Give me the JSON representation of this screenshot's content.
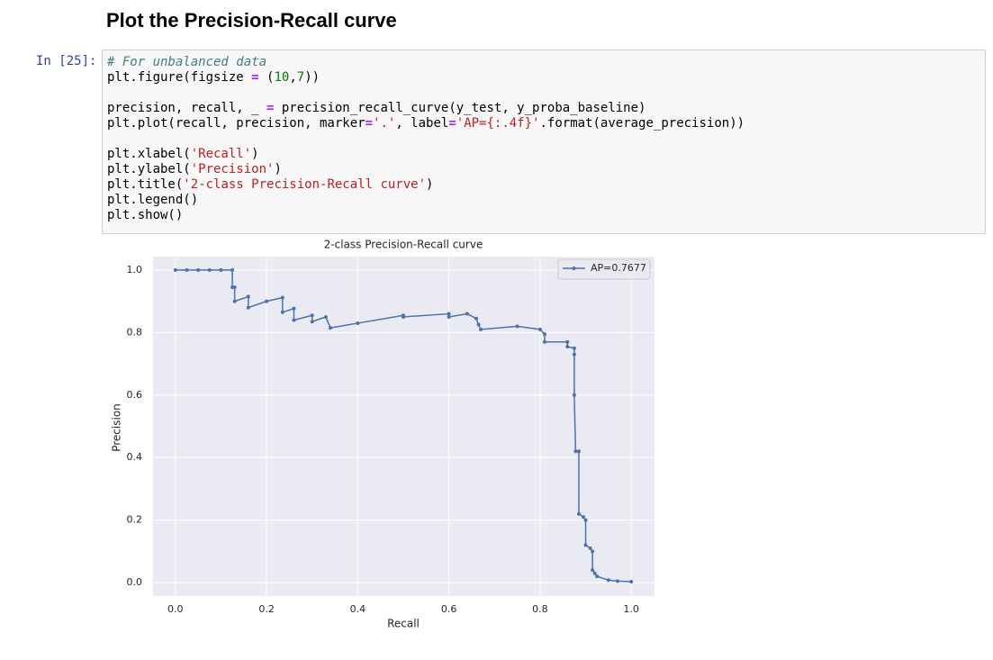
{
  "heading": "Plot the Precision-Recall curve",
  "cell": {
    "prompt": "In [25]:",
    "code_blocks": [
      [
        "# For unbalanced data",
        "plt.figure(figsize = (10,7))"
      ],
      [
        "precision, recall, _ = precision_recall_curve(y_test, y_proba_baseline)",
        "plt.plot(recall, precision, marker='.', label='AP={:.4f}'.format(average_precision))"
      ],
      [
        "plt.xlabel('Recall')",
        "plt.ylabel('Precision')",
        "plt.title('2-class Precision-Recall curve')",
        "plt.legend()",
        "plt.show()"
      ]
    ]
  },
  "chart_data": {
    "type": "line",
    "title": "2-class Precision-Recall curve",
    "x_label": "Recall",
    "y_label": "Precision",
    "x": [
      0,
      0.025,
      0.05,
      0.075,
      0.1,
      0.125,
      0.125,
      0.13,
      0.13,
      0.16,
      0.16,
      0.2,
      0.235,
      0.235,
      0.26,
      0.26,
      0.3,
      0.3,
      0.33,
      0.34,
      0.4,
      0.5,
      0.5,
      0.6,
      0.6,
      0.64,
      0.66,
      0.665,
      0.67,
      0.75,
      0.8,
      0.81,
      0.81,
      0.86,
      0.86,
      0.875,
      0.875,
      0.875,
      0.878,
      0.885,
      0.885,
      0.895,
      0.9,
      0.9,
      0.91,
      0.915,
      0.915,
      0.92,
      0.925,
      0.95,
      0.97,
      1.0
    ],
    "series": [
      {
        "name": "AP=0.7677",
        "color": "#4c72b0",
        "values": [
          1.0,
          1.0,
          1.0,
          1.0,
          1.0,
          1.0,
          0.945,
          0.945,
          0.9,
          0.915,
          0.88,
          0.9,
          0.912,
          0.865,
          0.877,
          0.84,
          0.855,
          0.835,
          0.85,
          0.815,
          0.83,
          0.855,
          0.85,
          0.86,
          0.85,
          0.86,
          0.845,
          0.825,
          0.81,
          0.82,
          0.81,
          0.795,
          0.77,
          0.77,
          0.755,
          0.75,
          0.73,
          0.6,
          0.42,
          0.42,
          0.22,
          0.21,
          0.2,
          0.12,
          0.11,
          0.1,
          0.04,
          0.03,
          0.02,
          0.008,
          0.005,
          0.003
        ]
      }
    ],
    "xlim": [
      -0.049,
      1.051
    ],
    "ylim": [
      -0.043,
      1.043
    ],
    "xticks": [
      {
        "value": 0,
        "label": "0.0"
      },
      0.2,
      0.4,
      0.6,
      0.8,
      {
        "value": 1,
        "label": "1.0"
      }
    ],
    "yticks": [
      {
        "value": 0,
        "label": "0.0"
      },
      0.2,
      0.4,
      0.6,
      0.8,
      {
        "value": 1,
        "label": "1.0"
      }
    ],
    "grid": true,
    "legend": "upper right"
  }
}
